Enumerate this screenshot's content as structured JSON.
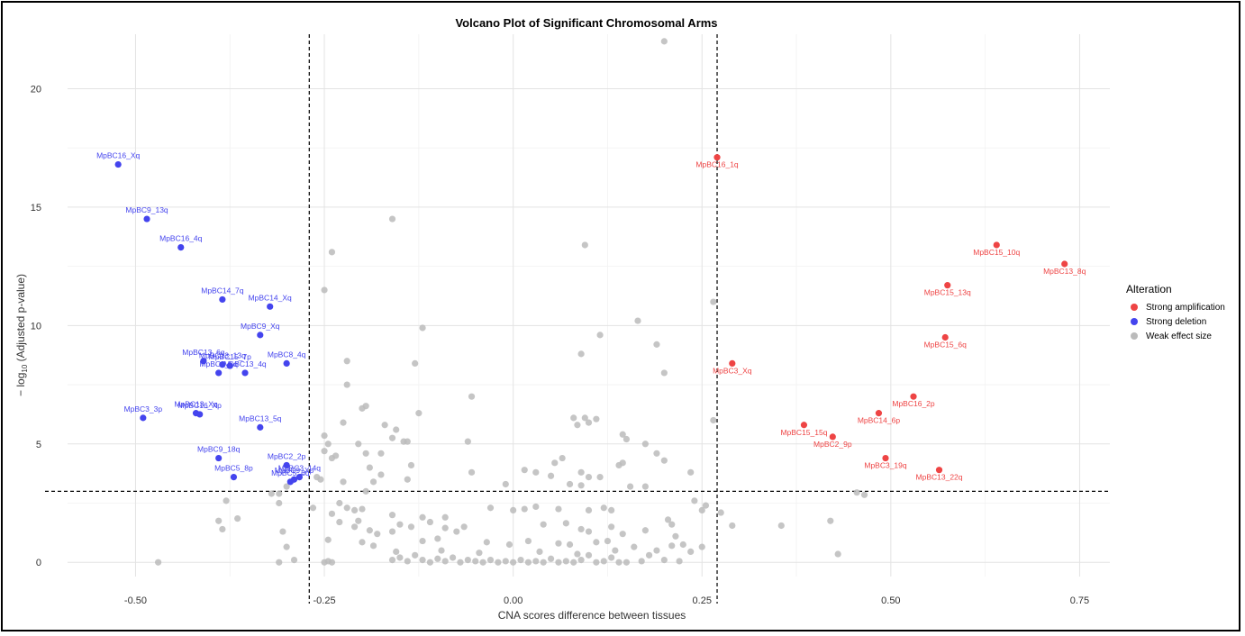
{
  "chart_data": {
    "type": "scatter",
    "title": "Volcano Plot of Significant Chromosomal Arms",
    "xlabel": "CNA scores difference between tissues",
    "ylabel_prefix": "− log",
    "ylabel_sub": "10",
    "ylabel_suffix": " (Adjusted p-value)",
    "xlim": [
      -0.59,
      0.79
    ],
    "ylim": [
      -0.6,
      22.3
    ],
    "xticks": [
      -0.5,
      -0.25,
      0.0,
      0.25,
      0.5,
      0.75
    ],
    "xtick_labels": [
      "-0.50",
      "-0.25",
      "0.00",
      "0.25",
      "0.50",
      "0.75"
    ],
    "yticks": [
      0,
      5,
      10,
      15,
      20
    ],
    "ytick_labels": [
      "0",
      "5",
      "10",
      "15",
      "20"
    ],
    "grid": true,
    "thresholds": {
      "x": [
        -0.27,
        0.27
      ],
      "y": 3.0
    },
    "legend": {
      "title": "Alteration",
      "placement": "right",
      "entries": [
        {
          "name": "Strong amplification",
          "color": "#ee4444"
        },
        {
          "name": "Strong deletion",
          "color": "#4444ee"
        },
        {
          "name": "Weak effect size",
          "color": "#bbbbbb"
        }
      ]
    },
    "series": [
      {
        "name": "Strong amplification",
        "color": "#ee4444",
        "points": [
          {
            "x": 0.27,
            "y": 17.1,
            "label": "MpBC16_1q"
          },
          {
            "x": 0.29,
            "y": 8.4,
            "label": "MpBC3_Xq"
          },
          {
            "x": 0.64,
            "y": 13.4,
            "label": "MpBC15_10q"
          },
          {
            "x": 0.73,
            "y": 12.6,
            "label": "MpBC13_8q"
          },
          {
            "x": 0.575,
            "y": 11.7,
            "label": "MpBC15_13q"
          },
          {
            "x": 0.572,
            "y": 9.5,
            "label": "MpBC15_6q"
          },
          {
            "x": 0.53,
            "y": 7.0,
            "label": "MpBC16_2p"
          },
          {
            "x": 0.385,
            "y": 5.8,
            "label": "MpBC15_15q"
          },
          {
            "x": 0.484,
            "y": 6.3,
            "label": "MpBC14_6p"
          },
          {
            "x": 0.423,
            "y": 5.3,
            "label": "MpBC2_9p"
          },
          {
            "x": 0.493,
            "y": 4.4,
            "label": "MpBC3_19q"
          },
          {
            "x": 0.564,
            "y": 3.9,
            "label": "MpBC13_22q"
          }
        ]
      },
      {
        "name": "Strong deletion",
        "color": "#4444ee",
        "points": [
          {
            "x": -0.523,
            "y": 16.8,
            "label": "MpBC16_Xq"
          },
          {
            "x": -0.485,
            "y": 14.5,
            "label": "MpBC9_13q"
          },
          {
            "x": -0.44,
            "y": 13.3,
            "label": "MpBC16_4q"
          },
          {
            "x": -0.385,
            "y": 11.1,
            "label": "MpBC14_7q"
          },
          {
            "x": -0.322,
            "y": 10.8,
            "label": "MpBC14_Xq"
          },
          {
            "x": -0.335,
            "y": 9.6,
            "label": "MpBC9_Xq"
          },
          {
            "x": -0.41,
            "y": 8.5,
            "label": "MpBC13_6q"
          },
          {
            "x": -0.385,
            "y": 8.35,
            "label": "MpBC13_13q"
          },
          {
            "x": -0.375,
            "y": 8.3,
            "label": "MpBC15_7p"
          },
          {
            "x": -0.3,
            "y": 8.4,
            "label": "MpBC8_4q"
          },
          {
            "x": -0.39,
            "y": 8.0,
            "label": "MpBC3_5q"
          },
          {
            "x": -0.355,
            "y": 8.0,
            "label": "MpBC13_4q"
          },
          {
            "x": -0.49,
            "y": 6.1,
            "label": "MpBC3_3p"
          },
          {
            "x": -0.42,
            "y": 6.3,
            "label": "MpBC13_Xq"
          },
          {
            "x": -0.415,
            "y": 6.25,
            "label": "MpBC16_Xp"
          },
          {
            "x": -0.335,
            "y": 5.7,
            "label": "MpBC13_5q"
          },
          {
            "x": -0.39,
            "y": 4.4,
            "label": "MpBC9_18q"
          },
          {
            "x": -0.3,
            "y": 4.1,
            "label": "MpBC2_2p"
          },
          {
            "x": -0.37,
            "y": 3.6,
            "label": "MpBC5_8p"
          },
          {
            "x": -0.283,
            "y": 3.6,
            "label": "MpBC3_14q"
          },
          {
            "x": -0.29,
            "y": 3.5,
            "label": "MpBC9_Xp"
          },
          {
            "x": -0.295,
            "y": 3.4,
            "label": "MpBC5_6q"
          }
        ]
      },
      {
        "name": "Weak effect size",
        "color": "#bbbbbb",
        "points": [
          {
            "x": 0.2,
            "y": 22.0
          },
          {
            "x": -0.16,
            "y": 14.5
          },
          {
            "x": -0.24,
            "y": 13.1
          },
          {
            "x": 0.095,
            "y": 13.4
          },
          {
            "x": -0.25,
            "y": 11.5
          },
          {
            "x": 0.265,
            "y": 11.0
          },
          {
            "x": -0.12,
            "y": 9.9
          },
          {
            "x": 0.165,
            "y": 10.2
          },
          {
            "x": 0.115,
            "y": 9.6
          },
          {
            "x": 0.19,
            "y": 9.2
          },
          {
            "x": 0.09,
            "y": 8.8
          },
          {
            "x": -0.22,
            "y": 8.5
          },
          {
            "x": -0.13,
            "y": 8.4
          },
          {
            "x": 0.2,
            "y": 8.0
          },
          {
            "x": -0.22,
            "y": 7.5
          },
          {
            "x": -0.055,
            "y": 7.0
          },
          {
            "x": -0.195,
            "y": 6.6
          },
          {
            "x": -0.2,
            "y": 6.5
          },
          {
            "x": -0.125,
            "y": 6.3
          },
          {
            "x": 0.08,
            "y": 6.1
          },
          {
            "x": 0.095,
            "y": 6.1
          },
          {
            "x": 0.11,
            "y": 6.05
          },
          {
            "x": 0.265,
            "y": 6.0
          },
          {
            "x": -0.225,
            "y": 5.9
          },
          {
            "x": -0.17,
            "y": 5.8
          },
          {
            "x": -0.155,
            "y": 5.6
          },
          {
            "x": 0.1,
            "y": 5.9
          },
          {
            "x": 0.085,
            "y": 5.8
          },
          {
            "x": -0.25,
            "y": 5.35
          },
          {
            "x": -0.16,
            "y": 5.25
          },
          {
            "x": -0.145,
            "y": 5.1
          },
          {
            "x": -0.14,
            "y": 5.1
          },
          {
            "x": -0.06,
            "y": 5.1
          },
          {
            "x": -0.205,
            "y": 5.0
          },
          {
            "x": 0.145,
            "y": 5.4
          },
          {
            "x": 0.15,
            "y": 5.2
          },
          {
            "x": 0.175,
            "y": 5.0
          },
          {
            "x": -0.245,
            "y": 5.0
          },
          {
            "x": -0.25,
            "y": 4.7
          },
          {
            "x": -0.195,
            "y": 4.6
          },
          {
            "x": -0.175,
            "y": 4.6
          },
          {
            "x": -0.235,
            "y": 4.5
          },
          {
            "x": -0.24,
            "y": 4.4
          },
          {
            "x": 0.065,
            "y": 4.4
          },
          {
            "x": 0.055,
            "y": 4.2
          },
          {
            "x": 0.19,
            "y": 4.6
          },
          {
            "x": 0.145,
            "y": 4.2
          },
          {
            "x": 0.14,
            "y": 4.1
          },
          {
            "x": -0.135,
            "y": 4.1
          },
          {
            "x": -0.19,
            "y": 4.0
          },
          {
            "x": 0.2,
            "y": 4.3
          },
          {
            "x": 0.015,
            "y": 3.9
          },
          {
            "x": -0.055,
            "y": 3.8
          },
          {
            "x": 0.03,
            "y": 3.8
          },
          {
            "x": 0.09,
            "y": 3.8
          },
          {
            "x": 0.05,
            "y": 3.65
          },
          {
            "x": 0.1,
            "y": 3.6
          },
          {
            "x": 0.115,
            "y": 3.6
          },
          {
            "x": -0.175,
            "y": 3.7
          },
          {
            "x": 0.235,
            "y": 3.8
          },
          {
            "x": -0.26,
            "y": 3.6
          },
          {
            "x": -0.255,
            "y": 3.5
          },
          {
            "x": -0.185,
            "y": 3.4
          },
          {
            "x": -0.14,
            "y": 3.5
          },
          {
            "x": -0.225,
            "y": 3.4
          },
          {
            "x": -0.01,
            "y": 3.3
          },
          {
            "x": 0.075,
            "y": 3.3
          },
          {
            "x": 0.09,
            "y": 3.25
          },
          {
            "x": -0.3,
            "y": 3.2
          },
          {
            "x": 0.155,
            "y": 3.2
          },
          {
            "x": 0.175,
            "y": 3.2
          },
          {
            "x": -0.195,
            "y": 3.0
          },
          {
            "x": -0.31,
            "y": 2.9
          },
          {
            "x": -0.23,
            "y": 2.5
          },
          {
            "x": -0.22,
            "y": 2.3
          },
          {
            "x": -0.2,
            "y": 2.25
          },
          {
            "x": -0.21,
            "y": 2.2
          },
          {
            "x": -0.24,
            "y": 2.05
          },
          {
            "x": -0.16,
            "y": 2.0
          },
          {
            "x": -0.12,
            "y": 1.9
          },
          {
            "x": -0.09,
            "y": 1.9
          },
          {
            "x": 0.1,
            "y": 2.2
          },
          {
            "x": 0.12,
            "y": 2.3
          },
          {
            "x": 0.13,
            "y": 2.2
          },
          {
            "x": 0.03,
            "y": 2.35
          },
          {
            "x": -0.03,
            "y": 2.3
          },
          {
            "x": 0.0,
            "y": 2.2
          },
          {
            "x": 0.015,
            "y": 2.25
          },
          {
            "x": 0.06,
            "y": 2.25
          },
          {
            "x": 0.24,
            "y": 2.6
          },
          {
            "x": 0.25,
            "y": 2.2
          },
          {
            "x": 0.255,
            "y": 2.4
          },
          {
            "x": 0.275,
            "y": 2.1
          },
          {
            "x": 0.205,
            "y": 1.8
          },
          {
            "x": -0.265,
            "y": 2.3
          },
          {
            "x": -0.38,
            "y": 2.6
          },
          {
            "x": -0.32,
            "y": 2.9
          },
          {
            "x": -0.31,
            "y": 2.5
          },
          {
            "x": -0.365,
            "y": 1.85
          },
          {
            "x": -0.39,
            "y": 1.75
          },
          {
            "x": -0.385,
            "y": 1.4
          },
          {
            "x": -0.23,
            "y": 1.7
          },
          {
            "x": -0.205,
            "y": 1.75
          },
          {
            "x": -0.19,
            "y": 1.35
          },
          {
            "x": -0.21,
            "y": 1.5
          },
          {
            "x": -0.18,
            "y": 1.2
          },
          {
            "x": -0.16,
            "y": 1.3
          },
          {
            "x": -0.15,
            "y": 1.6
          },
          {
            "x": -0.135,
            "y": 1.5
          },
          {
            "x": -0.11,
            "y": 1.7
          },
          {
            "x": -0.09,
            "y": 1.45
          },
          {
            "x": -0.075,
            "y": 1.3
          },
          {
            "x": -0.065,
            "y": 1.5
          },
          {
            "x": 0.04,
            "y": 1.6
          },
          {
            "x": 0.07,
            "y": 1.65
          },
          {
            "x": 0.09,
            "y": 1.4
          },
          {
            "x": 0.1,
            "y": 1.3
          },
          {
            "x": 0.13,
            "y": 1.5
          },
          {
            "x": 0.145,
            "y": 1.2
          },
          {
            "x": 0.175,
            "y": 1.35
          },
          {
            "x": 0.21,
            "y": 1.6
          },
          {
            "x": 0.215,
            "y": 1.1
          },
          {
            "x": 0.29,
            "y": 1.55
          },
          {
            "x": 0.355,
            "y": 1.55
          },
          {
            "x": 0.42,
            "y": 1.75
          },
          {
            "x": 0.43,
            "y": 0.35
          },
          {
            "x": 0.455,
            "y": 2.95
          },
          {
            "x": 0.465,
            "y": 2.85
          },
          {
            "x": -0.305,
            "y": 1.3
          },
          {
            "x": -0.3,
            "y": 0.65
          },
          {
            "x": -0.29,
            "y": 0.1
          },
          {
            "x": -0.31,
            "y": 0.0
          },
          {
            "x": -0.47,
            "y": 0.0
          },
          {
            "x": -0.245,
            "y": 0.95
          },
          {
            "x": -0.2,
            "y": 0.85
          },
          {
            "x": -0.185,
            "y": 0.7
          },
          {
            "x": -0.12,
            "y": 0.9
          },
          {
            "x": -0.1,
            "y": 1.0
          },
          {
            "x": -0.035,
            "y": 0.85
          },
          {
            "x": -0.005,
            "y": 0.75
          },
          {
            "x": 0.02,
            "y": 0.9
          },
          {
            "x": 0.06,
            "y": 0.8
          },
          {
            "x": 0.075,
            "y": 0.75
          },
          {
            "x": 0.11,
            "y": 0.85
          },
          {
            "x": 0.125,
            "y": 0.9
          },
          {
            "x": 0.16,
            "y": 0.65
          },
          {
            "x": 0.19,
            "y": 0.5
          },
          {
            "x": 0.21,
            "y": 0.7
          },
          {
            "x": 0.225,
            "y": 0.75
          },
          {
            "x": 0.235,
            "y": 0.45
          },
          {
            "x": 0.25,
            "y": 0.65
          },
          {
            "x": 0.22,
            "y": 0.05
          },
          {
            "x": -0.25,
            "y": 0.0
          },
          {
            "x": -0.245,
            "y": 0.05
          },
          {
            "x": -0.24,
            "y": 0.0
          },
          {
            "x": -0.16,
            "y": 0.1
          },
          {
            "x": -0.15,
            "y": 0.2
          },
          {
            "x": -0.14,
            "y": 0.05
          },
          {
            "x": -0.13,
            "y": 0.3
          },
          {
            "x": -0.12,
            "y": 0.1
          },
          {
            "x": -0.11,
            "y": 0.0
          },
          {
            "x": -0.1,
            "y": 0.15
          },
          {
            "x": -0.09,
            "y": 0.05
          },
          {
            "x": -0.08,
            "y": 0.2
          },
          {
            "x": -0.07,
            "y": 0.0
          },
          {
            "x": -0.06,
            "y": 0.1
          },
          {
            "x": -0.05,
            "y": 0.05
          },
          {
            "x": -0.04,
            "y": 0.0
          },
          {
            "x": -0.03,
            "y": 0.1
          },
          {
            "x": -0.02,
            "y": 0.0
          },
          {
            "x": -0.01,
            "y": 0.05
          },
          {
            "x": 0.0,
            "y": 0.0
          },
          {
            "x": 0.01,
            "y": 0.1
          },
          {
            "x": 0.02,
            "y": 0.0
          },
          {
            "x": 0.03,
            "y": 0.05
          },
          {
            "x": 0.04,
            "y": 0.0
          },
          {
            "x": 0.05,
            "y": 0.15
          },
          {
            "x": 0.06,
            "y": 0.0
          },
          {
            "x": 0.07,
            "y": 0.05
          },
          {
            "x": 0.08,
            "y": 0.0
          },
          {
            "x": 0.09,
            "y": 0.1
          },
          {
            "x": 0.1,
            "y": 0.3
          },
          {
            "x": 0.11,
            "y": 0.0
          },
          {
            "x": 0.12,
            "y": 0.05
          },
          {
            "x": 0.13,
            "y": 0.2
          },
          {
            "x": 0.14,
            "y": 0.0
          },
          {
            "x": 0.15,
            "y": 0.0
          },
          {
            "x": 0.17,
            "y": 0.05
          },
          {
            "x": 0.18,
            "y": 0.3
          },
          {
            "x": 0.2,
            "y": 0.1
          },
          {
            "x": -0.155,
            "y": 0.45
          },
          {
            "x": -0.095,
            "y": 0.5
          },
          {
            "x": -0.045,
            "y": 0.4
          },
          {
            "x": 0.035,
            "y": 0.45
          },
          {
            "x": 0.085,
            "y": 0.35
          },
          {
            "x": 0.135,
            "y": 0.5
          }
        ]
      }
    ]
  }
}
